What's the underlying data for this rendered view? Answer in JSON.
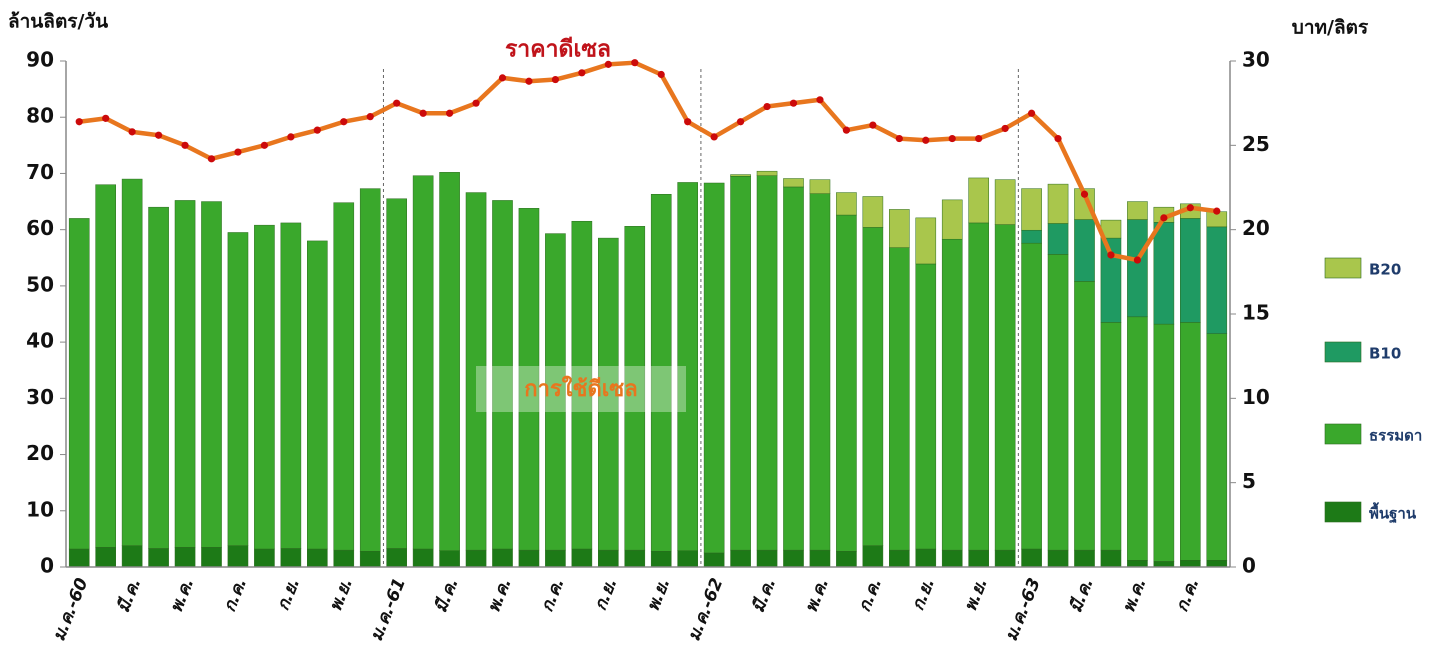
{
  "chart_data": {
    "type": "bar",
    "stacked": true,
    "title": "ราคาดีเซล",
    "annotation": "การใช้ดีเซล",
    "y_label": "ล้านลิตร/วัน",
    "y2_label": "บาท/ลิตร",
    "categories": [
      "ม.ค.-60",
      null,
      "มี.ค.",
      null,
      "พ.ค.",
      null,
      "ก.ค.",
      null,
      "ก.ย.",
      null,
      "พ.ย.",
      null,
      "ม.ค.-61",
      null,
      "มี.ค.",
      null,
      "พ.ค.",
      null,
      "ก.ค.",
      null,
      "ก.ย.",
      null,
      "พ.ย.",
      null,
      "ม.ค.-62",
      null,
      "มี.ค.",
      null,
      "พ.ค.",
      null,
      "ก.ค.",
      null,
      "ก.ย.",
      null,
      "พ.ย.",
      null,
      "ม.ค.-63",
      null,
      "มี.ค.",
      null,
      "พ.ค.",
      null,
      "ก.ค.",
      null
    ],
    "series": [
      {
        "name": "พื้นฐาน",
        "color": "#1d7a17",
        "values": [
          3.2,
          3.5,
          3.8,
          3.3,
          3.5,
          3.5,
          3.8,
          3.2,
          3.3,
          3.2,
          3.0,
          2.8,
          3.3,
          3.2,
          2.9,
          3.0,
          3.2,
          3.0,
          3.0,
          3.2,
          3.0,
          3.0,
          2.8,
          2.9,
          2.5,
          3.0,
          3.0,
          3.0,
          3.0,
          2.8,
          3.8,
          3.0,
          3.2,
          3.0,
          3.0,
          3.0,
          3.2,
          3.0,
          3.0,
          3.0,
          1.2,
          1.0,
          1.2,
          1.2
        ]
      },
      {
        "name": "ธรรมดา",
        "color": "#3aa82c",
        "values": [
          58.8,
          64.5,
          65.2,
          60.7,
          61.7,
          61.5,
          55.7,
          57.6,
          57.9,
          54.8,
          61.8,
          64.5,
          62.2,
          66.4,
          67.3,
          63.6,
          62,
          60.8,
          56.3,
          58.3,
          55.5,
          57.6,
          63.5,
          65.5,
          65.8,
          66.5,
          66.6,
          64.6,
          63.4,
          59.8,
          56.6,
          53.8,
          50.7,
          55.3,
          58.2,
          57.9,
          54.4,
          52.6,
          47.8,
          40.5,
          43.3,
          42.2,
          42.3,
          40.3
        ]
      },
      {
        "name": "B10",
        "color": "#1f9a62",
        "values": [
          null,
          null,
          null,
          null,
          null,
          null,
          null,
          null,
          null,
          null,
          null,
          null,
          null,
          null,
          null,
          null,
          null,
          null,
          null,
          null,
          null,
          null,
          null,
          null,
          null,
          null,
          null,
          null,
          null,
          null,
          null,
          null,
          null,
          null,
          null,
          null,
          2.3,
          5.5,
          11,
          15,
          17.3,
          18.1,
          18.5,
          19
        ]
      },
      {
        "name": "B20",
        "color": "#a9c64c",
        "values": [
          null,
          null,
          null,
          null,
          null,
          null,
          null,
          null,
          null,
          null,
          null,
          null,
          null,
          null,
          null,
          null,
          null,
          null,
          null,
          null,
          null,
          null,
          null,
          null,
          null,
          0.3,
          0.8,
          1.5,
          2.5,
          4,
          5.5,
          6.8,
          8.2,
          7,
          8,
          8,
          7.4,
          7,
          5.5,
          3.2,
          3.2,
          2.7,
          2.6,
          2.7
        ]
      },
      {
        "name": "ราคาดีเซล",
        "type": "line",
        "axis": "y2",
        "color": "#e8761e",
        "marker_color": "#cc0a0a",
        "values": [
          26.4,
          26.6,
          25.8,
          25.6,
          25.0,
          24.2,
          24.6,
          25.0,
          25.5,
          25.9,
          26.4,
          26.7,
          27.5,
          26.9,
          26.9,
          27.5,
          29.0,
          28.8,
          28.9,
          29.3,
          29.8,
          29.9,
          29.2,
          26.4,
          25.5,
          26.4,
          27.3,
          27.5,
          27.7,
          25.9,
          26.2,
          25.4,
          25.3,
          25.4,
          25.4,
          26.0,
          26.9,
          25.4,
          22.1,
          18.5,
          18.2,
          20.7,
          21.3,
          21.1
        ]
      }
    ],
    "ylim": [
      0,
      90
    ],
    "yticks": [
      0,
      10,
      20,
      30,
      40,
      50,
      60,
      70,
      80,
      90
    ],
    "y2lim": [
      0,
      30
    ],
    "y2ticks": [
      0,
      5,
      10,
      15,
      20,
      25,
      30
    ],
    "legend": "right"
  }
}
